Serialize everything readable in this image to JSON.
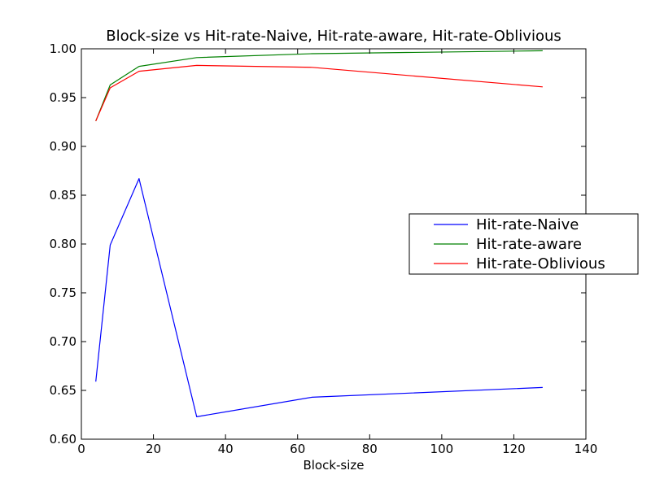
{
  "chart_data": {
    "type": "line",
    "title": "Block-size vs Hit-rate-Naive, Hit-rate-aware, Hit-rate-Oblivious",
    "xlabel": "Block-size",
    "ylabel": "",
    "xlim": [
      0,
      140
    ],
    "ylim": [
      0.6,
      1.0
    ],
    "x_ticks": [
      0,
      20,
      40,
      60,
      80,
      100,
      120,
      140
    ],
    "x_tick_labels": [
      "0",
      "20",
      "40",
      "60",
      "80",
      "100",
      "120",
      "140"
    ],
    "y_ticks": [
      0.6,
      0.65,
      0.7,
      0.75,
      0.8,
      0.85,
      0.9,
      0.95,
      1.0
    ],
    "y_tick_labels": [
      "0.60",
      "0.65",
      "0.70",
      "0.75",
      "0.80",
      "0.85",
      "0.90",
      "0.95",
      "1.00"
    ],
    "grid": false,
    "legend_position": "center-right",
    "x": [
      4,
      8,
      16,
      32,
      64,
      128
    ],
    "series": [
      {
        "name": "Hit-rate-Naive",
        "color": "#0000ff",
        "values": [
          0.659,
          0.799,
          0.867,
          0.623,
          0.643,
          0.653
        ]
      },
      {
        "name": "Hit-rate-aware",
        "color": "#008000",
        "values": [
          0.926,
          0.963,
          0.982,
          0.991,
          0.995,
          0.998
        ]
      },
      {
        "name": "Hit-rate-Oblivious",
        "color": "#ff0000",
        "values": [
          0.926,
          0.96,
          0.977,
          0.983,
          0.981,
          0.961
        ]
      }
    ]
  }
}
